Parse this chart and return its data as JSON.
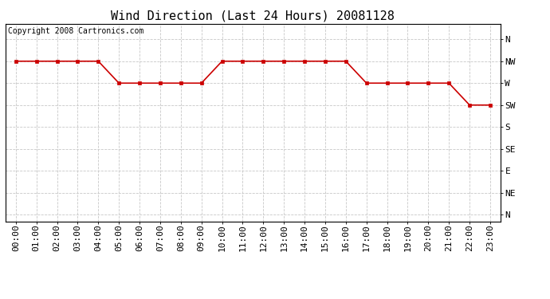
{
  "title": "Wind Direction (Last 24 Hours) 20081128",
  "copyright": "Copyright 2008 Cartronics.com",
  "hours": [
    0,
    1,
    2,
    3,
    4,
    5,
    6,
    7,
    8,
    9,
    10,
    11,
    12,
    13,
    14,
    15,
    16,
    17,
    18,
    19,
    20,
    21,
    22,
    23
  ],
  "wind_values": [
    7,
    7,
    7,
    7,
    7,
    6,
    6,
    6,
    6,
    6,
    7,
    7,
    7,
    7,
    7,
    7,
    7,
    6,
    6,
    6,
    6,
    6,
    5,
    5
  ],
  "ytick_positions": [
    8,
    7,
    6,
    5,
    4,
    3,
    2,
    1,
    0
  ],
  "ytick_labels": [
    "N",
    "NW",
    "W",
    "SW",
    "S",
    "SE",
    "E",
    "NE",
    "N"
  ],
  "line_color": "#cc0000",
  "marker": "s",
  "marker_size": 3,
  "marker_color": "#cc0000",
  "background_color": "#ffffff",
  "grid_color": "#c8c8c8",
  "title_fontsize": 11,
  "copyright_fontsize": 7,
  "tick_fontsize": 8,
  "xlim": [
    -0.5,
    23.5
  ],
  "ylim": [
    -0.3,
    8.7
  ]
}
